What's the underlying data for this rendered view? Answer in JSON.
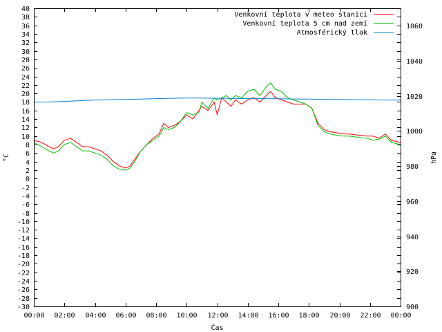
{
  "chart_data": {
    "type": "line",
    "xlabel": "Čas",
    "ylabel": "°C",
    "y2label": "hPa",
    "xlim": [
      0,
      24
    ],
    "ylim": [
      -30,
      40
    ],
    "y2lim": [
      900,
      1070
    ],
    "x_tick_labels": [
      "00:00",
      "02:00",
      "04:00",
      "06:00",
      "08:00",
      "10:00",
      "12:00",
      "14:00",
      "16:00",
      "18:00",
      "20:00",
      "22:00",
      "00:00"
    ],
    "y_ticks": [
      40,
      38,
      36,
      34,
      32,
      30,
      28,
      26,
      24,
      22,
      20,
      18,
      16,
      14,
      12,
      10,
      8,
      6,
      4,
      2,
      0,
      -2,
      -4,
      -6,
      -8,
      -10,
      -12,
      -14,
      -16,
      -18,
      -20,
      -22,
      -24,
      -26,
      -28,
      -30
    ],
    "y2_ticks": [
      1060,
      1040,
      1020,
      1000,
      980,
      960,
      940,
      920,
      900
    ],
    "grid": false,
    "legend_position": "top-right",
    "series": [
      {
        "name": "Venkovní teplota v meteo stanici",
        "color": "#ff0000",
        "axis": "left",
        "x": [
          0,
          0.5,
          1,
          1.3,
          1.6,
          2,
          2.4,
          2.8,
          3.2,
          3.6,
          4,
          4.4,
          4.8,
          5.2,
          5.6,
          6,
          6.3,
          6.6,
          7,
          7.4,
          7.8,
          8.2,
          8.5,
          8.8,
          9.2,
          9.6,
          10,
          10.4,
          10.8,
          11,
          11.4,
          11.8,
          12,
          12.3,
          12.6,
          12.9,
          13.2,
          13.6,
          14,
          14.4,
          14.8,
          15.2,
          15.5,
          15.8,
          16.2,
          16.6,
          17,
          17.4,
          17.8,
          18.2,
          18.6,
          19,
          19.4,
          19.8,
          20.2,
          20.6,
          21,
          21.4,
          21.8,
          22.2,
          22.6,
          23,
          23.4,
          24
        ],
        "values": [
          9,
          8.5,
          7.5,
          7,
          7.5,
          9,
          9.5,
          8.5,
          7.5,
          7.5,
          7,
          6.5,
          5.5,
          4,
          3,
          2.5,
          3,
          4.5,
          6.5,
          8,
          9.5,
          10.5,
          13,
          12,
          12.5,
          13.5,
          15,
          14,
          16,
          17,
          16,
          18,
          15,
          19,
          18,
          17,
          18.5,
          17.5,
          18.5,
          19,
          18,
          19.5,
          20.5,
          19,
          18.5,
          18,
          17.5,
          17.5,
          17.5,
          16.5,
          13,
          11.5,
          11,
          10.8,
          10.5,
          10.5,
          10.3,
          10.2,
          10,
          10,
          9.5,
          10.5,
          9,
          8.5
        ]
      },
      {
        "name": "Venkovní teplota 5 cm nad zemí",
        "color": "#00c000",
        "axis": "left",
        "x": [
          0,
          0.5,
          1,
          1.3,
          1.6,
          2,
          2.4,
          2.8,
          3.2,
          3.6,
          4,
          4.4,
          4.8,
          5.2,
          5.6,
          6,
          6.3,
          6.6,
          7,
          7.4,
          7.8,
          8.2,
          8.5,
          8.8,
          9.2,
          9.6,
          10,
          10.4,
          10.8,
          11,
          11.4,
          11.8,
          12,
          12.3,
          12.6,
          12.9,
          13.2,
          13.6,
          14,
          14.4,
          14.8,
          15.2,
          15.5,
          15.8,
          16.2,
          16.6,
          17,
          17.4,
          17.8,
          18.2,
          18.6,
          19,
          19.4,
          19.8,
          20.2,
          20.6,
          21,
          21.4,
          21.8,
          22.2,
          22.6,
          23,
          23.4,
          24
        ],
        "values": [
          8.5,
          7.5,
          6.5,
          6,
          6.5,
          8,
          8.5,
          7.5,
          6.5,
          6.5,
          6,
          5.5,
          4.5,
          3,
          2.2,
          2,
          2.5,
          4,
          6.5,
          8,
          9,
          10,
          12,
          11.5,
          12,
          13.5,
          15.5,
          15,
          15.5,
          18,
          16.5,
          19,
          18.5,
          19,
          19.5,
          18.5,
          19.5,
          19,
          20.5,
          21,
          19.5,
          21.5,
          22.5,
          21,
          20.5,
          19,
          18.5,
          18,
          17.5,
          16.5,
          12.5,
          11,
          10.5,
          10.2,
          10,
          10,
          9.8,
          9.6,
          9.5,
          9,
          9.3,
          10,
          8.5,
          8
        ]
      },
      {
        "name": "Atmosférický tlak",
        "color": "#0080d0",
        "axis": "right",
        "x": [
          0,
          1,
          2,
          3,
          4,
          5,
          6,
          7,
          8,
          9,
          10,
          11,
          12,
          13,
          14,
          15,
          16,
          17,
          18,
          19,
          20,
          21,
          22,
          23,
          24
        ],
        "values": [
          1016.5,
          1016.6,
          1016.9,
          1017.3,
          1017.7,
          1017.9,
          1018,
          1018.2,
          1018.5,
          1018.7,
          1018.8,
          1018.8,
          1018.7,
          1018.6,
          1018.5,
          1018.5,
          1018.4,
          1018.3,
          1018.2,
          1018.1,
          1018,
          1017.9,
          1017.8,
          1017.7,
          1017.6
        ]
      }
    ]
  }
}
